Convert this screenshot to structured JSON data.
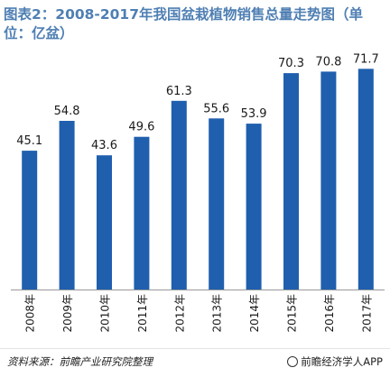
{
  "title": "图表2：2008-2017年我国盆栽植物销售总量走势图（单位：亿盆）",
  "source": "资料来源：前瞻产业研究院整理",
  "brand": "前瞻经济学人APP",
  "colors": {
    "bar": "#1f5fae",
    "title": "#4f7fb3",
    "axis": "#999999"
  },
  "chart_data": {
    "type": "bar",
    "categories": [
      "2008年",
      "2009年",
      "2010年",
      "2011年",
      "2012年",
      "2013年",
      "2014年",
      "2015年",
      "2016年",
      "2017年"
    ],
    "values": [
      45.1,
      54.8,
      43.6,
      49.6,
      61.3,
      55.6,
      53.9,
      70.3,
      70.8,
      71.7
    ],
    "title": "图表2：2008-2017年我国盆栽植物销售总量走势图（单位：亿盆）",
    "xlabel": "",
    "ylabel": "",
    "ylim": [
      0,
      80
    ],
    "grid": false,
    "legend": "none"
  }
}
